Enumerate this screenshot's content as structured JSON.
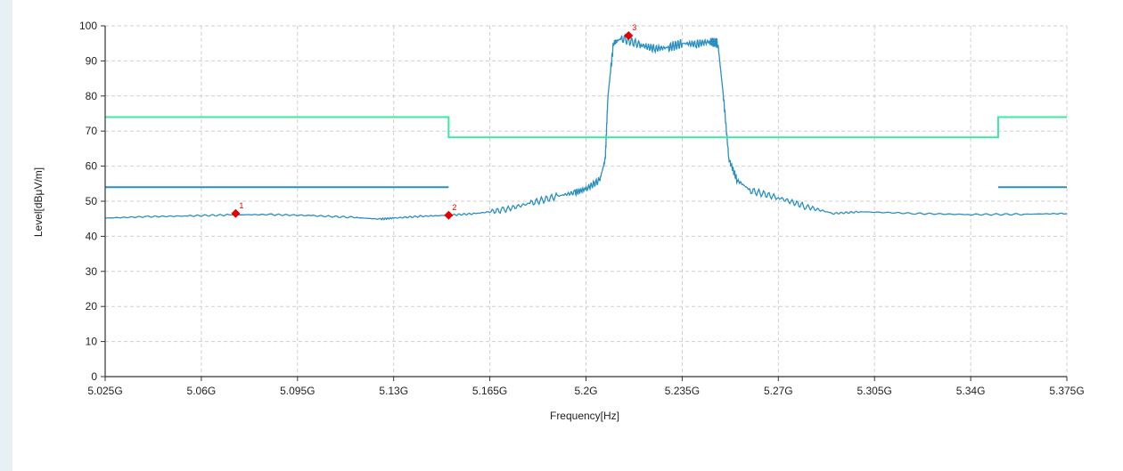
{
  "chart_data": {
    "type": "line",
    "xlabel": "Frequency[Hz]",
    "ylabel": "Level[dBμV/m]",
    "xlim": [
      5.025,
      5.375
    ],
    "ylim": [
      0,
      100
    ],
    "x_unit": "GHz",
    "x_tick_labels": [
      "5.025G",
      "5.06G",
      "5.095G",
      "5.13G",
      "5.165G",
      "5.2G",
      "5.235G",
      "5.27G",
      "5.305G",
      "5.34G",
      "5.375G"
    ],
    "y_tick_labels": [
      "0",
      "10",
      "20",
      "30",
      "40",
      "50",
      "60",
      "70",
      "80",
      "90",
      "100"
    ],
    "grid": true,
    "colors": {
      "trace": "#2a8fc1",
      "limit_peak": "#3de8a0",
      "limit_avg": "#2a8fc1",
      "marker": "#e60000",
      "grid": "#cfcfcf"
    },
    "series": [
      {
        "role": "measurement trace",
        "x": [
          5.025,
          5.04,
          5.055,
          5.07,
          5.085,
          5.1,
          5.115,
          5.125,
          5.13,
          5.14,
          5.15,
          5.16,
          5.17,
          5.18,
          5.19,
          5.196,
          5.2,
          5.205,
          5.207,
          5.208,
          5.21,
          5.213,
          5.22,
          5.225,
          5.23,
          5.235,
          5.24,
          5.245,
          5.248,
          5.25,
          5.252,
          5.255,
          5.26,
          5.27,
          5.28,
          5.29,
          5.3,
          5.32,
          5.34,
          5.36,
          5.375
        ],
        "y": [
          45.2,
          45.6,
          45.8,
          46.1,
          46.2,
          45.9,
          45.4,
          44.9,
          45.2,
          45.7,
          46,
          46.5,
          47.5,
          49.5,
          51.5,
          52.5,
          53.5,
          56,
          62,
          80,
          95,
          96.5,
          94.5,
          93.5,
          93.8,
          95,
          94.8,
          95.5,
          95,
          80,
          62,
          56,
          53,
          51,
          48.5,
          46.5,
          47,
          46.5,
          46.2,
          46.3,
          46.5
        ]
      },
      {
        "role": "peak limit line",
        "x": [
          5.025,
          5.15,
          5.15,
          5.35,
          5.35,
          5.375
        ],
        "y": [
          74,
          74,
          68.2,
          68.2,
          74,
          74
        ]
      },
      {
        "role": "average limit line",
        "segments": [
          {
            "x": [
              5.025,
              5.15
            ],
            "y": [
              54,
              54
            ]
          },
          {
            "x": [
              5.35,
              5.375
            ],
            "y": [
              54,
              54
            ]
          }
        ]
      }
    ],
    "markers": [
      {
        "label": "1",
        "x": 5.0725,
        "y": 46.5
      },
      {
        "label": "2",
        "x": 5.15,
        "y": 46
      },
      {
        "label": "3",
        "x": 5.2155,
        "y": 97.2
      }
    ]
  }
}
